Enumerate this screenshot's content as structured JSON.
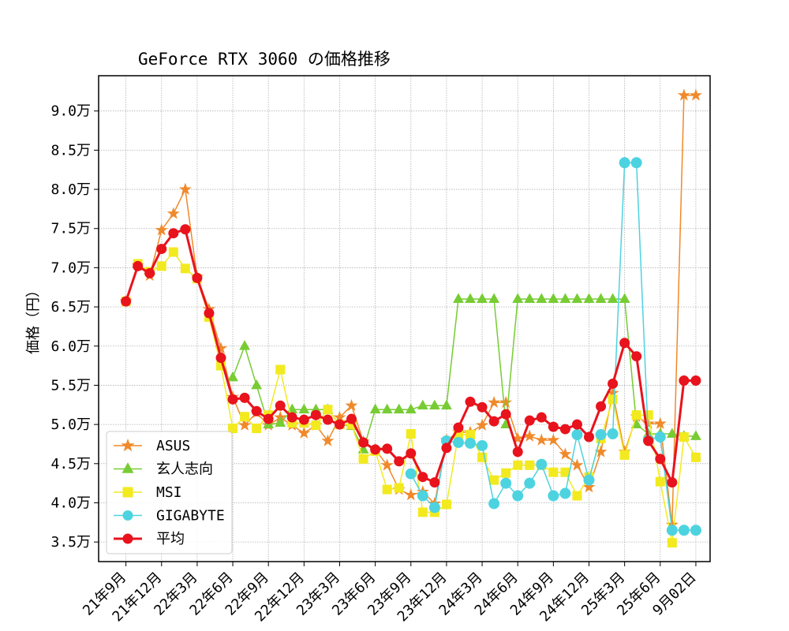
{
  "chart_data": {
    "type": "line",
    "title": "GeForce RTX 3060 の価格推移",
    "ylabel": "価格（円）",
    "xlabel": "",
    "ylim": [
      32500,
      94500
    ],
    "y_ticks": [
      35000,
      40000,
      45000,
      50000,
      55000,
      60000,
      65000,
      70000,
      75000,
      80000,
      85000,
      90000
    ],
    "y_tick_labels": [
      "3.5万",
      "4.0万",
      "4.5万",
      "5.0万",
      "5.5万",
      "6.0万",
      "6.5万",
      "7.0万",
      "7.5万",
      "8.0万",
      "8.5万",
      "9.0万"
    ],
    "x_ticks": [
      0,
      3,
      6,
      9,
      12,
      15,
      18,
      21,
      24,
      27,
      30,
      33,
      36,
      39,
      42,
      45,
      48
    ],
    "x_tick_labels": [
      "21年9月",
      "21年12月",
      "22年3月",
      "22年6月",
      "22年9月",
      "22年12月",
      "23年3月",
      "23年6月",
      "23年9月",
      "23年12月",
      "24年3月",
      "24年6月",
      "24年9月",
      "24年12月",
      "25年3月",
      "25年6月",
      "9月02日"
    ],
    "xlim": [
      -2.3,
      49.2
    ],
    "grid": true,
    "legend_position": "lower-left",
    "series": [
      {
        "name": "ASUS",
        "color": "#f0892a",
        "marker": "star",
        "x": [
          0,
          1,
          2,
          3,
          4,
          5,
          6,
          7,
          8,
          9,
          10,
          11,
          12,
          13,
          14,
          15,
          16,
          17,
          18,
          19,
          20,
          21,
          22,
          23,
          24,
          25,
          26,
          27,
          28,
          29,
          30,
          31,
          32,
          33,
          34,
          35,
          36,
          37,
          38,
          39,
          40,
          41,
          42,
          43,
          44,
          45,
          46,
          47,
          48
        ],
        "y": [
          65700,
          70300,
          69000,
          74800,
          76900,
          80000,
          68800,
          64700,
          59700,
          53500,
          49900,
          51500,
          49900,
          50900,
          49900,
          48900,
          49900,
          47900,
          50900,
          52400,
          47800,
          46800,
          44800,
          41700,
          41000,
          41400,
          39900,
          48000,
          49000,
          49000,
          49900,
          52800,
          52800,
          48200,
          48500,
          48000,
          48000,
          46200,
          44800,
          42000,
          46500,
          54000,
          46500,
          51000,
          50100,
          50100,
          37200,
          92000,
          92000
        ]
      },
      {
        "name": "玄人志向",
        "color": "#77cc33",
        "marker": "triangle",
        "x": [
          9,
          10,
          11,
          12,
          13,
          14,
          15,
          16,
          17,
          18,
          19,
          20,
          21,
          22,
          23,
          24,
          25,
          26,
          27,
          28,
          29,
          30,
          31,
          32,
          33,
          34,
          35,
          36,
          37,
          38,
          39,
          40,
          41,
          42,
          43,
          44,
          45,
          46,
          47,
          48
        ],
        "y": [
          56000,
          60000,
          55000,
          50000,
          50200,
          51900,
          51900,
          51900,
          51900,
          50000,
          49800,
          46800,
          51900,
          51900,
          51900,
          51900,
          52400,
          52400,
          52400,
          66000,
          66000,
          66000,
          66000,
          50000,
          66000,
          66000,
          66000,
          66000,
          66000,
          66000,
          66000,
          66000,
          66000,
          66000,
          50000,
          48800,
          48800,
          48800,
          48500,
          48500
        ]
      },
      {
        "name": "MSI",
        "color": "#f2ea1e",
        "marker": "square",
        "x": [
          0,
          1,
          2,
          3,
          4,
          5,
          6,
          7,
          8,
          9,
          10,
          11,
          12,
          13,
          14,
          15,
          16,
          17,
          18,
          19,
          20,
          21,
          22,
          23,
          24,
          25,
          26,
          27,
          28,
          29,
          30,
          31,
          32,
          33,
          34,
          35,
          36,
          37,
          38,
          39,
          40,
          41,
          42,
          43,
          44,
          45,
          46,
          47,
          48
        ],
        "y": [
          65700,
          70500,
          69500,
          70200,
          72000,
          69900,
          68600,
          63700,
          57500,
          49500,
          51000,
          49500,
          51200,
          57000,
          50200,
          50200,
          49900,
          51900,
          50000,
          50000,
          45600,
          46600,
          41700,
          41900,
          48800,
          38800,
          38800,
          39800,
          48700,
          48700,
          45800,
          42900,
          43800,
          44800,
          44800,
          44800,
          43900,
          43900,
          40900,
          43300,
          48200,
          53200,
          46100,
          51200,
          51200,
          42700,
          34900,
          48400,
          45800
        ]
      },
      {
        "name": "GIGABYTE",
        "color": "#4dd3e0",
        "marker": "circle",
        "x": [
          24,
          25,
          26,
          27,
          28,
          29,
          30,
          31,
          32,
          33,
          34,
          35,
          36,
          37,
          38,
          39,
          40,
          41,
          42,
          43,
          44,
          45,
          46,
          47,
          48
        ],
        "y": [
          43700,
          40900,
          39400,
          47900,
          47700,
          47600,
          47300,
          39900,
          42500,
          40900,
          42500,
          44900,
          40900,
          41200,
          48700,
          42900,
          48700,
          48800,
          83400,
          83400,
          48000,
          48400,
          36500,
          36500,
          36500
        ]
      },
      {
        "name": "平均",
        "color": "#e8131d",
        "marker": "circle",
        "x": [
          0,
          1,
          2,
          3,
          4,
          5,
          6,
          7,
          8,
          9,
          10,
          11,
          12,
          13,
          14,
          15,
          16,
          17,
          18,
          19,
          20,
          21,
          22,
          23,
          24,
          25,
          26,
          27,
          28,
          29,
          30,
          31,
          32,
          33,
          34,
          35,
          36,
          37,
          38,
          39,
          40,
          41,
          42,
          43,
          44,
          45,
          46,
          47,
          48
        ],
        "y": [
          65700,
          70200,
          69300,
          72400,
          74400,
          74900,
          68700,
          64200,
          58500,
          53200,
          53400,
          51700,
          50700,
          52400,
          50900,
          50600,
          51200,
          50600,
          50000,
          50700,
          47700,
          46800,
          46900,
          45300,
          46300,
          43300,
          42600,
          47000,
          49600,
          52900,
          52200,
          50400,
          51300,
          46500,
          50500,
          50900,
          49700,
          49400,
          50000,
          48400,
          52300,
          55200,
          60400,
          58700,
          47900,
          45600,
          42600,
          55600,
          55600
        ]
      }
    ]
  }
}
